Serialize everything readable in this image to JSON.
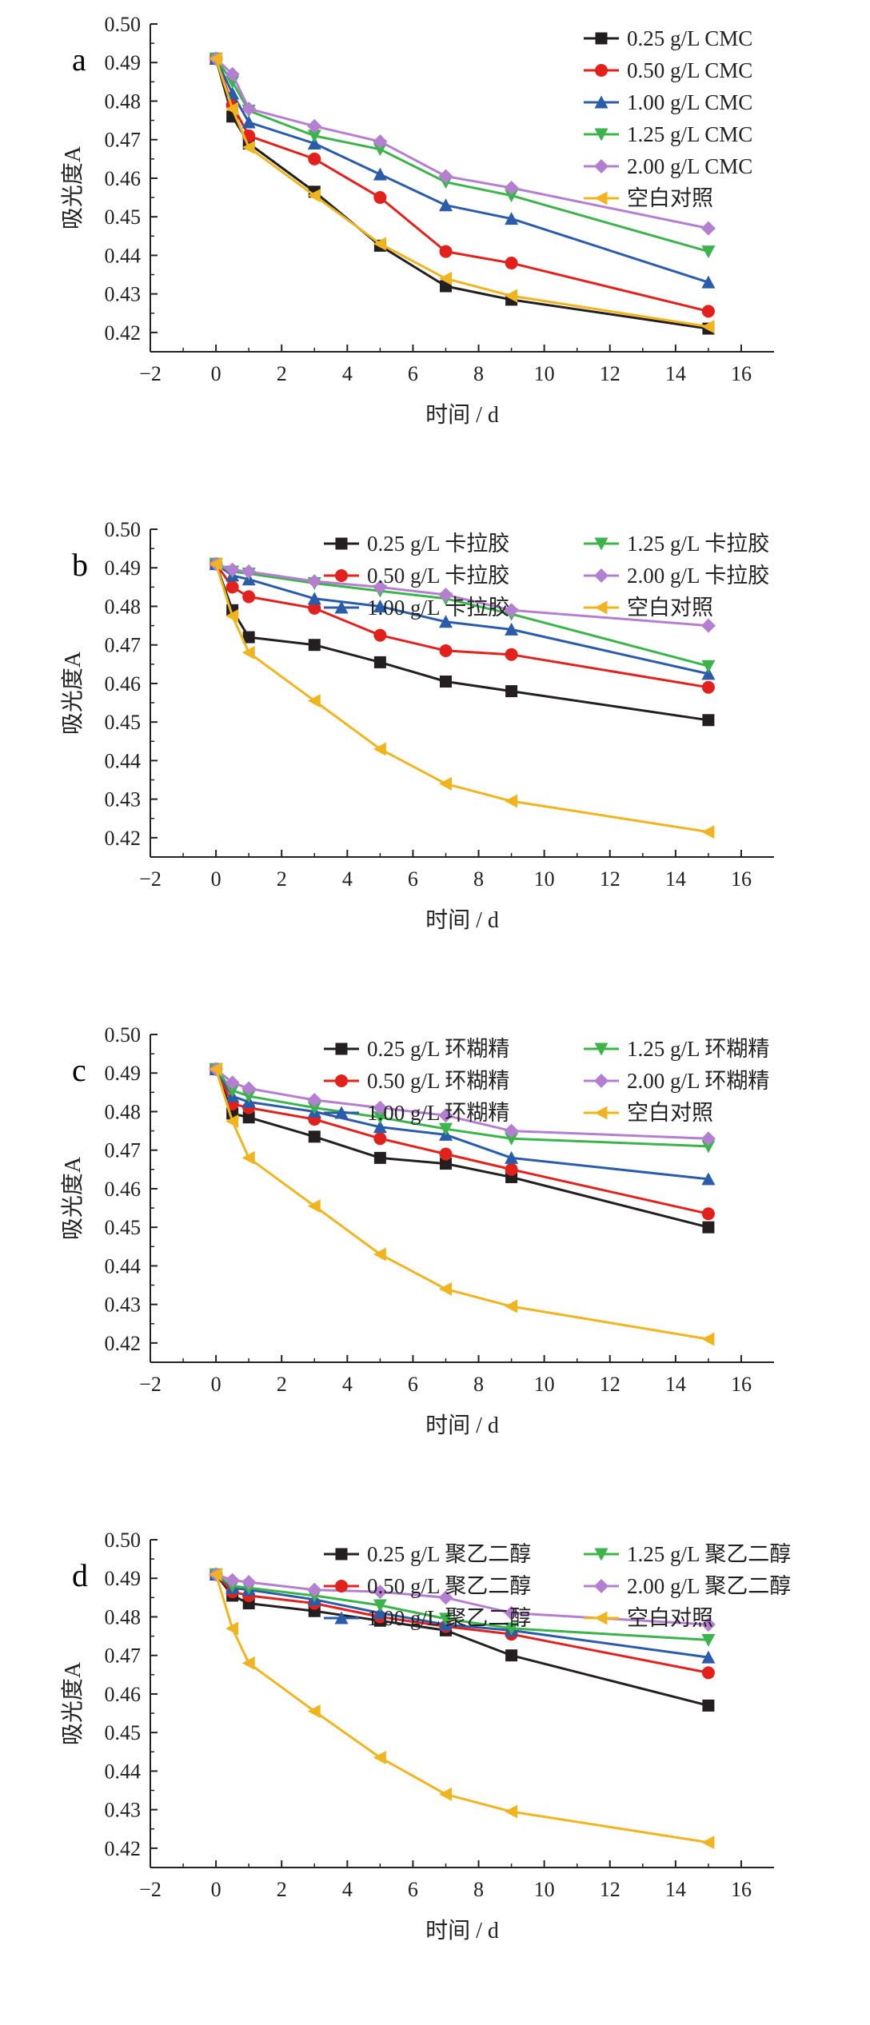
{
  "chart_data": [
    {
      "panel": "a",
      "type": "line",
      "xlabel": "时间 / d",
      "ylabel": "吸光度A",
      "xlim": [
        -2,
        17
      ],
      "ylim": [
        0.415,
        0.5
      ],
      "xticks": [
        -2,
        0,
        2,
        4,
        6,
        8,
        10,
        12,
        14,
        16
      ],
      "yticks": [
        0.42,
        0.43,
        0.44,
        0.45,
        0.46,
        0.47,
        0.48,
        0.49,
        0.5
      ],
      "ytick_labels": [
        "0.42",
        "0.43",
        "0.44",
        "0.45",
        "0.46",
        "0.47",
        "0.48",
        "0.49",
        "0.50"
      ],
      "legend_layout": "single-column-top-right",
      "series": [
        {
          "name": "0.25 g/L CMC",
          "color": "#231f20",
          "marker": "square",
          "x": [
            0,
            0.5,
            1,
            3,
            5,
            7,
            9,
            15
          ],
          "y": [
            0.491,
            0.476,
            0.469,
            0.4565,
            0.4425,
            0.432,
            0.4285,
            0.421
          ]
        },
        {
          "name": "0.50 g/L CMC",
          "color": "#e3211c",
          "marker": "circle",
          "x": [
            0,
            0.5,
            1,
            3,
            5,
            7,
            9,
            15
          ],
          "y": [
            0.491,
            0.479,
            0.471,
            0.465,
            0.455,
            0.441,
            0.438,
            0.4255
          ]
        },
        {
          "name": "1.00 g/L CMC",
          "color": "#2a5caa",
          "marker": "triangle-up",
          "x": [
            0,
            0.5,
            1,
            3,
            5,
            7,
            9,
            15
          ],
          "y": [
            0.491,
            0.482,
            0.4745,
            0.469,
            0.461,
            0.453,
            0.4495,
            0.433
          ]
        },
        {
          "name": "1.25 g/L CMC",
          "color": "#3cb44b",
          "marker": "triangle-down",
          "x": [
            0,
            0.5,
            1,
            3,
            5,
            7,
            9,
            15
          ],
          "y": [
            0.491,
            0.485,
            0.4775,
            0.471,
            0.4675,
            0.459,
            0.4555,
            0.441
          ]
        },
        {
          "name": "2.00 g/L CMC",
          "color": "#b57fd1",
          "marker": "diamond",
          "x": [
            0,
            0.5,
            1,
            3,
            5,
            7,
            9,
            15
          ],
          "y": [
            0.491,
            0.487,
            0.478,
            0.4735,
            0.4695,
            0.4605,
            0.4575,
            0.447
          ]
        },
        {
          "name": "空白对照",
          "color": "#f0b51e",
          "marker": "triangle-left",
          "x": [
            0,
            0.5,
            1,
            3,
            5,
            7,
            9,
            15
          ],
          "y": [
            0.491,
            0.478,
            0.468,
            0.4555,
            0.443,
            0.434,
            0.4295,
            0.4215
          ]
        }
      ]
    },
    {
      "panel": "b",
      "type": "line",
      "xlabel": "时间 / d",
      "ylabel": "吸光度A",
      "xlim": [
        -2,
        17
      ],
      "ylim": [
        0.415,
        0.5
      ],
      "xticks": [
        -2,
        0,
        2,
        4,
        6,
        8,
        10,
        12,
        14,
        16
      ],
      "yticks": [
        0.42,
        0.43,
        0.44,
        0.45,
        0.46,
        0.47,
        0.48,
        0.49,
        0.5
      ],
      "ytick_labels": [
        "0.42",
        "0.43",
        "0.44",
        "0.45",
        "0.46",
        "0.47",
        "0.48",
        "0.49",
        "0.50"
      ],
      "legend_layout": "two-column-top",
      "series": [
        {
          "name": "0.25 g/L 卡拉胶",
          "color": "#231f20",
          "marker": "square",
          "x": [
            0,
            0.5,
            1,
            3,
            5,
            7,
            9,
            15
          ],
          "y": [
            0.491,
            0.479,
            0.472,
            0.47,
            0.4655,
            0.4605,
            0.458,
            0.4505
          ]
        },
        {
          "name": "0.50 g/L 卡拉胶",
          "color": "#e3211c",
          "marker": "circle",
          "x": [
            0,
            0.5,
            1,
            3,
            5,
            7,
            9,
            15
          ],
          "y": [
            0.491,
            0.485,
            0.4825,
            0.4795,
            0.4725,
            0.4685,
            0.4675,
            0.459
          ]
        },
        {
          "name": "1.00 g/L 卡拉胶",
          "color": "#2a5caa",
          "marker": "triangle-up",
          "x": [
            0,
            0.5,
            1,
            3,
            5,
            7,
            9,
            15
          ],
          "y": [
            0.491,
            0.488,
            0.487,
            0.482,
            0.48,
            0.476,
            0.474,
            0.4625
          ]
        },
        {
          "name": "1.25 g/L 卡拉胶",
          "color": "#3cb44b",
          "marker": "triangle-down",
          "x": [
            0,
            0.5,
            1,
            3,
            5,
            7,
            9,
            15
          ],
          "y": [
            0.491,
            0.489,
            0.4885,
            0.486,
            0.484,
            0.482,
            0.478,
            0.4645
          ]
        },
        {
          "name": "2.00 g/L 卡拉胶",
          "color": "#b57fd1",
          "marker": "diamond",
          "x": [
            0,
            0.5,
            1,
            3,
            5,
            7,
            9,
            15
          ],
          "y": [
            0.491,
            0.4895,
            0.489,
            0.4865,
            0.485,
            0.483,
            0.479,
            0.475
          ]
        },
        {
          "name": "空白对照",
          "color": "#f0b51e",
          "marker": "triangle-left",
          "x": [
            0,
            0.5,
            1,
            3,
            5,
            7,
            9,
            15
          ],
          "y": [
            0.491,
            0.4775,
            0.468,
            0.4555,
            0.443,
            0.434,
            0.4295,
            0.4215
          ]
        }
      ]
    },
    {
      "panel": "c",
      "type": "line",
      "xlabel": "时间 / d",
      "ylabel": "吸光度A",
      "xlim": [
        -2,
        17
      ],
      "ylim": [
        0.415,
        0.5
      ],
      "xticks": [
        -2,
        0,
        2,
        4,
        6,
        8,
        10,
        12,
        14,
        16
      ],
      "yticks": [
        0.42,
        0.43,
        0.44,
        0.45,
        0.46,
        0.47,
        0.48,
        0.49,
        0.5
      ],
      "ytick_labels": [
        "0.42",
        "0.43",
        "0.44",
        "0.45",
        "0.46",
        "0.47",
        "0.48",
        "0.49",
        "0.50"
      ],
      "legend_layout": "two-column-top",
      "series": [
        {
          "name": "0.25 g/L 环糊精",
          "color": "#231f20",
          "marker": "square",
          "x": [
            0,
            0.5,
            1,
            3,
            5,
            7,
            9,
            15
          ],
          "y": [
            0.491,
            0.4795,
            0.4785,
            0.4735,
            0.468,
            0.4665,
            0.463,
            0.45
          ]
        },
        {
          "name": "0.50 g/L 环糊精",
          "color": "#e3211c",
          "marker": "circle",
          "x": [
            0,
            0.5,
            1,
            3,
            5,
            7,
            9,
            15
          ],
          "y": [
            0.491,
            0.482,
            0.481,
            0.478,
            0.473,
            0.469,
            0.465,
            0.4535
          ]
        },
        {
          "name": "1.00 g/L 环糊精",
          "color": "#2a5caa",
          "marker": "triangle-up",
          "x": [
            0,
            0.5,
            1,
            3,
            5,
            7,
            9,
            15
          ],
          "y": [
            0.491,
            0.484,
            0.4825,
            0.48,
            0.476,
            0.474,
            0.468,
            0.4625
          ]
        },
        {
          "name": "1.25 g/L 环糊精",
          "color": "#3cb44b",
          "marker": "triangle-down",
          "x": [
            0,
            0.5,
            1,
            3,
            5,
            7,
            9,
            15
          ],
          "y": [
            0.491,
            0.4855,
            0.484,
            0.481,
            0.4785,
            0.4755,
            0.473,
            0.471
          ]
        },
        {
          "name": "2.00 g/L 环糊精",
          "color": "#b57fd1",
          "marker": "diamond",
          "x": [
            0,
            0.5,
            1,
            3,
            5,
            7,
            9,
            15
          ],
          "y": [
            0.491,
            0.4875,
            0.486,
            0.483,
            0.481,
            0.479,
            0.475,
            0.473
          ]
        },
        {
          "name": "空白对照",
          "color": "#f0b51e",
          "marker": "triangle-left",
          "x": [
            0,
            0.5,
            1,
            3,
            5,
            7,
            9,
            15
          ],
          "y": [
            0.491,
            0.4775,
            0.468,
            0.4555,
            0.443,
            0.434,
            0.4295,
            0.421
          ]
        }
      ]
    },
    {
      "panel": "d",
      "type": "line",
      "xlabel": "时间 / d",
      "ylabel": "吸光度A",
      "xlim": [
        -2,
        17
      ],
      "ylim": [
        0.415,
        0.5
      ],
      "xticks": [
        -2,
        0,
        2,
        4,
        6,
        8,
        10,
        12,
        14,
        16
      ],
      "yticks": [
        0.42,
        0.43,
        0.44,
        0.45,
        0.46,
        0.47,
        0.48,
        0.49,
        0.5
      ],
      "ytick_labels": [
        "0.42",
        "0.43",
        "0.44",
        "0.45",
        "0.46",
        "0.47",
        "0.48",
        "0.49",
        "0.50"
      ],
      "legend_layout": "two-column-top",
      "series": [
        {
          "name": "0.25 g/L 聚乙二醇",
          "color": "#231f20",
          "marker": "square",
          "x": [
            0,
            0.5,
            1,
            3,
            5,
            7,
            9,
            15
          ],
          "y": [
            0.491,
            0.4855,
            0.4835,
            0.4815,
            0.479,
            0.4765,
            0.47,
            0.457
          ]
        },
        {
          "name": "0.50 g/L 聚乙二醇",
          "color": "#e3211c",
          "marker": "circle",
          "x": [
            0,
            0.5,
            1,
            3,
            5,
            7,
            9,
            15
          ],
          "y": [
            0.491,
            0.4865,
            0.4855,
            0.4835,
            0.48,
            0.4775,
            0.4755,
            0.4655
          ]
        },
        {
          "name": "1.00 g/L 聚乙二醇",
          "color": "#2a5caa",
          "marker": "triangle-up",
          "x": [
            0,
            0.5,
            1,
            3,
            5,
            7,
            9,
            15
          ],
          "y": [
            0.491,
            0.4875,
            0.487,
            0.4845,
            0.481,
            0.478,
            0.4765,
            0.4695
          ]
        },
        {
          "name": "1.25 g/L 聚乙二醇",
          "color": "#3cb44b",
          "marker": "triangle-down",
          "x": [
            0,
            0.5,
            1,
            3,
            5,
            7,
            9,
            15
          ],
          "y": [
            0.491,
            0.488,
            0.4875,
            0.4855,
            0.483,
            0.4795,
            0.477,
            0.474
          ]
        },
        {
          "name": "2.00 g/L 聚乙二醇",
          "color": "#b57fd1",
          "marker": "diamond",
          "x": [
            0,
            0.5,
            1,
            3,
            5,
            7,
            9,
            15
          ],
          "y": [
            0.491,
            0.4895,
            0.489,
            0.487,
            0.4865,
            0.485,
            0.481,
            0.478
          ]
        },
        {
          "name": "空白对照",
          "color": "#f0b51e",
          "marker": "triangle-left",
          "x": [
            0,
            0.5,
            1,
            3,
            5,
            7,
            9,
            15
          ],
          "y": [
            0.491,
            0.477,
            0.468,
            0.4555,
            0.4435,
            0.434,
            0.4295,
            0.4215
          ]
        }
      ]
    }
  ]
}
